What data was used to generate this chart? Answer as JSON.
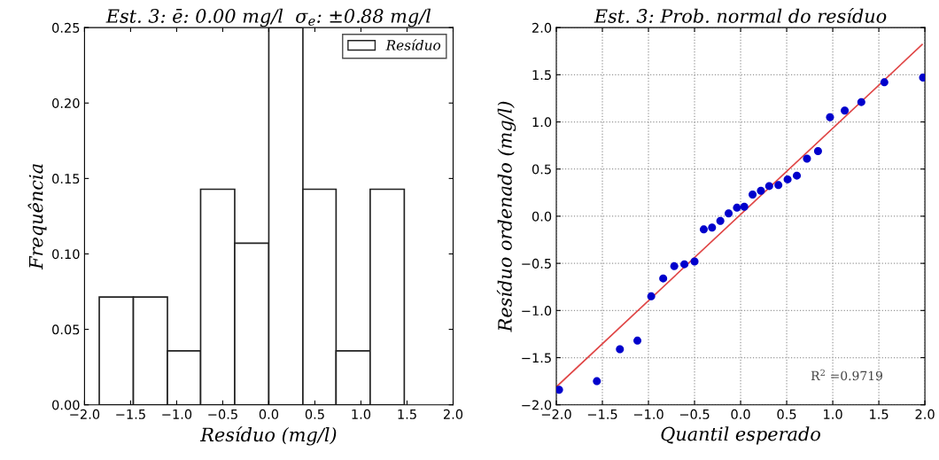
{
  "chart_data": [
    {
      "type": "histogram",
      "title": "Est. 3: ē: 0.00 mg/l  σ$_{e}$: ±0.88 mg/l",
      "xlabel": "Resíduo (mg/l)",
      "ylabel": "Frequência",
      "bins": [
        -1.84,
        -1.47,
        -1.1,
        -0.74,
        -0.37,
        0.0,
        0.37,
        0.73,
        1.1,
        1.47
      ],
      "series": [
        {
          "name": "Resíduo",
          "color": "#ffffff",
          "values": [
            0.0714,
            0.0714,
            0.0357,
            0.1429,
            0.1071,
            0.25,
            0.1429,
            0.0357,
            0.1429
          ]
        }
      ],
      "xlim": [
        -2.0,
        2.0
      ],
      "xticks": [
        {
          "value": -2.0,
          "label": "−2.0"
        },
        {
          "value": -1.5,
          "label": "−1.5"
        },
        {
          "value": -1.0,
          "label": "−1.0"
        },
        {
          "value": -0.5,
          "label": "−0.5"
        },
        {
          "value": 0.0,
          "label": "0.0"
        },
        {
          "value": 0.5,
          "label": "0.5"
        },
        {
          "value": 1.0,
          "label": "1.0"
        },
        {
          "value": 1.5,
          "label": "1.5"
        },
        {
          "value": 2.0,
          "label": "2.0"
        }
      ],
      "ylim": [
        0,
        0.25
      ],
      "yticks": [
        {
          "value": 0,
          "label": "0.00"
        },
        {
          "value": 0.05,
          "label": "0.05"
        },
        {
          "value": 0.1,
          "label": "0.10"
        },
        {
          "value": 0.15,
          "label": "0.15"
        },
        {
          "value": 0.2,
          "label": "0.20"
        },
        {
          "value": 0.25,
          "label": "0.25"
        }
      ],
      "legend": "top right",
      "grid": false
    },
    {
      "type": "scatter",
      "title": "Est. 3: Prob. normal do resíduo",
      "xlabel": "Quantil esperado",
      "ylabel": "Resíduo ordenado (mg/l)",
      "annotations": [
        "R$^{2}$ =0.9719"
      ],
      "series": [
        {
          "type": "scatter",
          "marker": "circle",
          "color": "#0000cc",
          "x": [
            -1.97,
            -1.56,
            -1.31,
            -1.12,
            -0.97,
            -0.84,
            -0.72,
            -0.61,
            -0.5,
            -0.4,
            -0.31,
            -0.22,
            -0.13,
            -0.04,
            0.04,
            0.13,
            0.22,
            0.31,
            0.41,
            0.51,
            0.61,
            0.72,
            0.84,
            0.97,
            1.13,
            1.31,
            1.56,
            1.98
          ],
          "values": [
            -1.84,
            -1.75,
            -1.41,
            -1.32,
            -0.85,
            -0.66,
            -0.53,
            -0.51,
            -0.48,
            -0.14,
            -0.12,
            -0.05,
            0.03,
            0.09,
            0.1,
            0.23,
            0.27,
            0.32,
            0.33,
            0.39,
            0.43,
            0.61,
            0.69,
            1.05,
            1.12,
            1.21,
            1.42,
            1.47
          ]
        },
        {
          "type": "line",
          "color": "#e04848",
          "x": [
            -2.0,
            1.97
          ],
          "values": [
            -1.81,
            1.82
          ]
        }
      ],
      "xlim": [
        -2.0,
        2.0
      ],
      "xticks": [
        {
          "value": -2.0,
          "label": "−2.0"
        },
        {
          "value": -1.5,
          "label": "−1.5"
        },
        {
          "value": -1.0,
          "label": "−1.0"
        },
        {
          "value": -0.5,
          "label": "−0.5"
        },
        {
          "value": 0.0,
          "label": "0.0"
        },
        {
          "value": 0.5,
          "label": "0.5"
        },
        {
          "value": 1.0,
          "label": "1.0"
        },
        {
          "value": 1.5,
          "label": "1.5"
        },
        {
          "value": 2.0,
          "label": "2.0"
        }
      ],
      "ylim": [
        -2.0,
        2.0
      ],
      "yticks": [
        {
          "value": -2.0,
          "label": "−2.0"
        },
        {
          "value": -1.5,
          "label": "−1.5"
        },
        {
          "value": -1.0,
          "label": "−1.0"
        },
        {
          "value": -0.5,
          "label": "−0.5"
        },
        {
          "value": 0.0,
          "label": "0.0"
        },
        {
          "value": 0.5,
          "label": "0.5"
        },
        {
          "value": 1.0,
          "label": "1.0"
        },
        {
          "value": 1.5,
          "label": "1.5"
        },
        {
          "value": 2.0,
          "label": "2.0"
        }
      ],
      "grid": true
    }
  ]
}
